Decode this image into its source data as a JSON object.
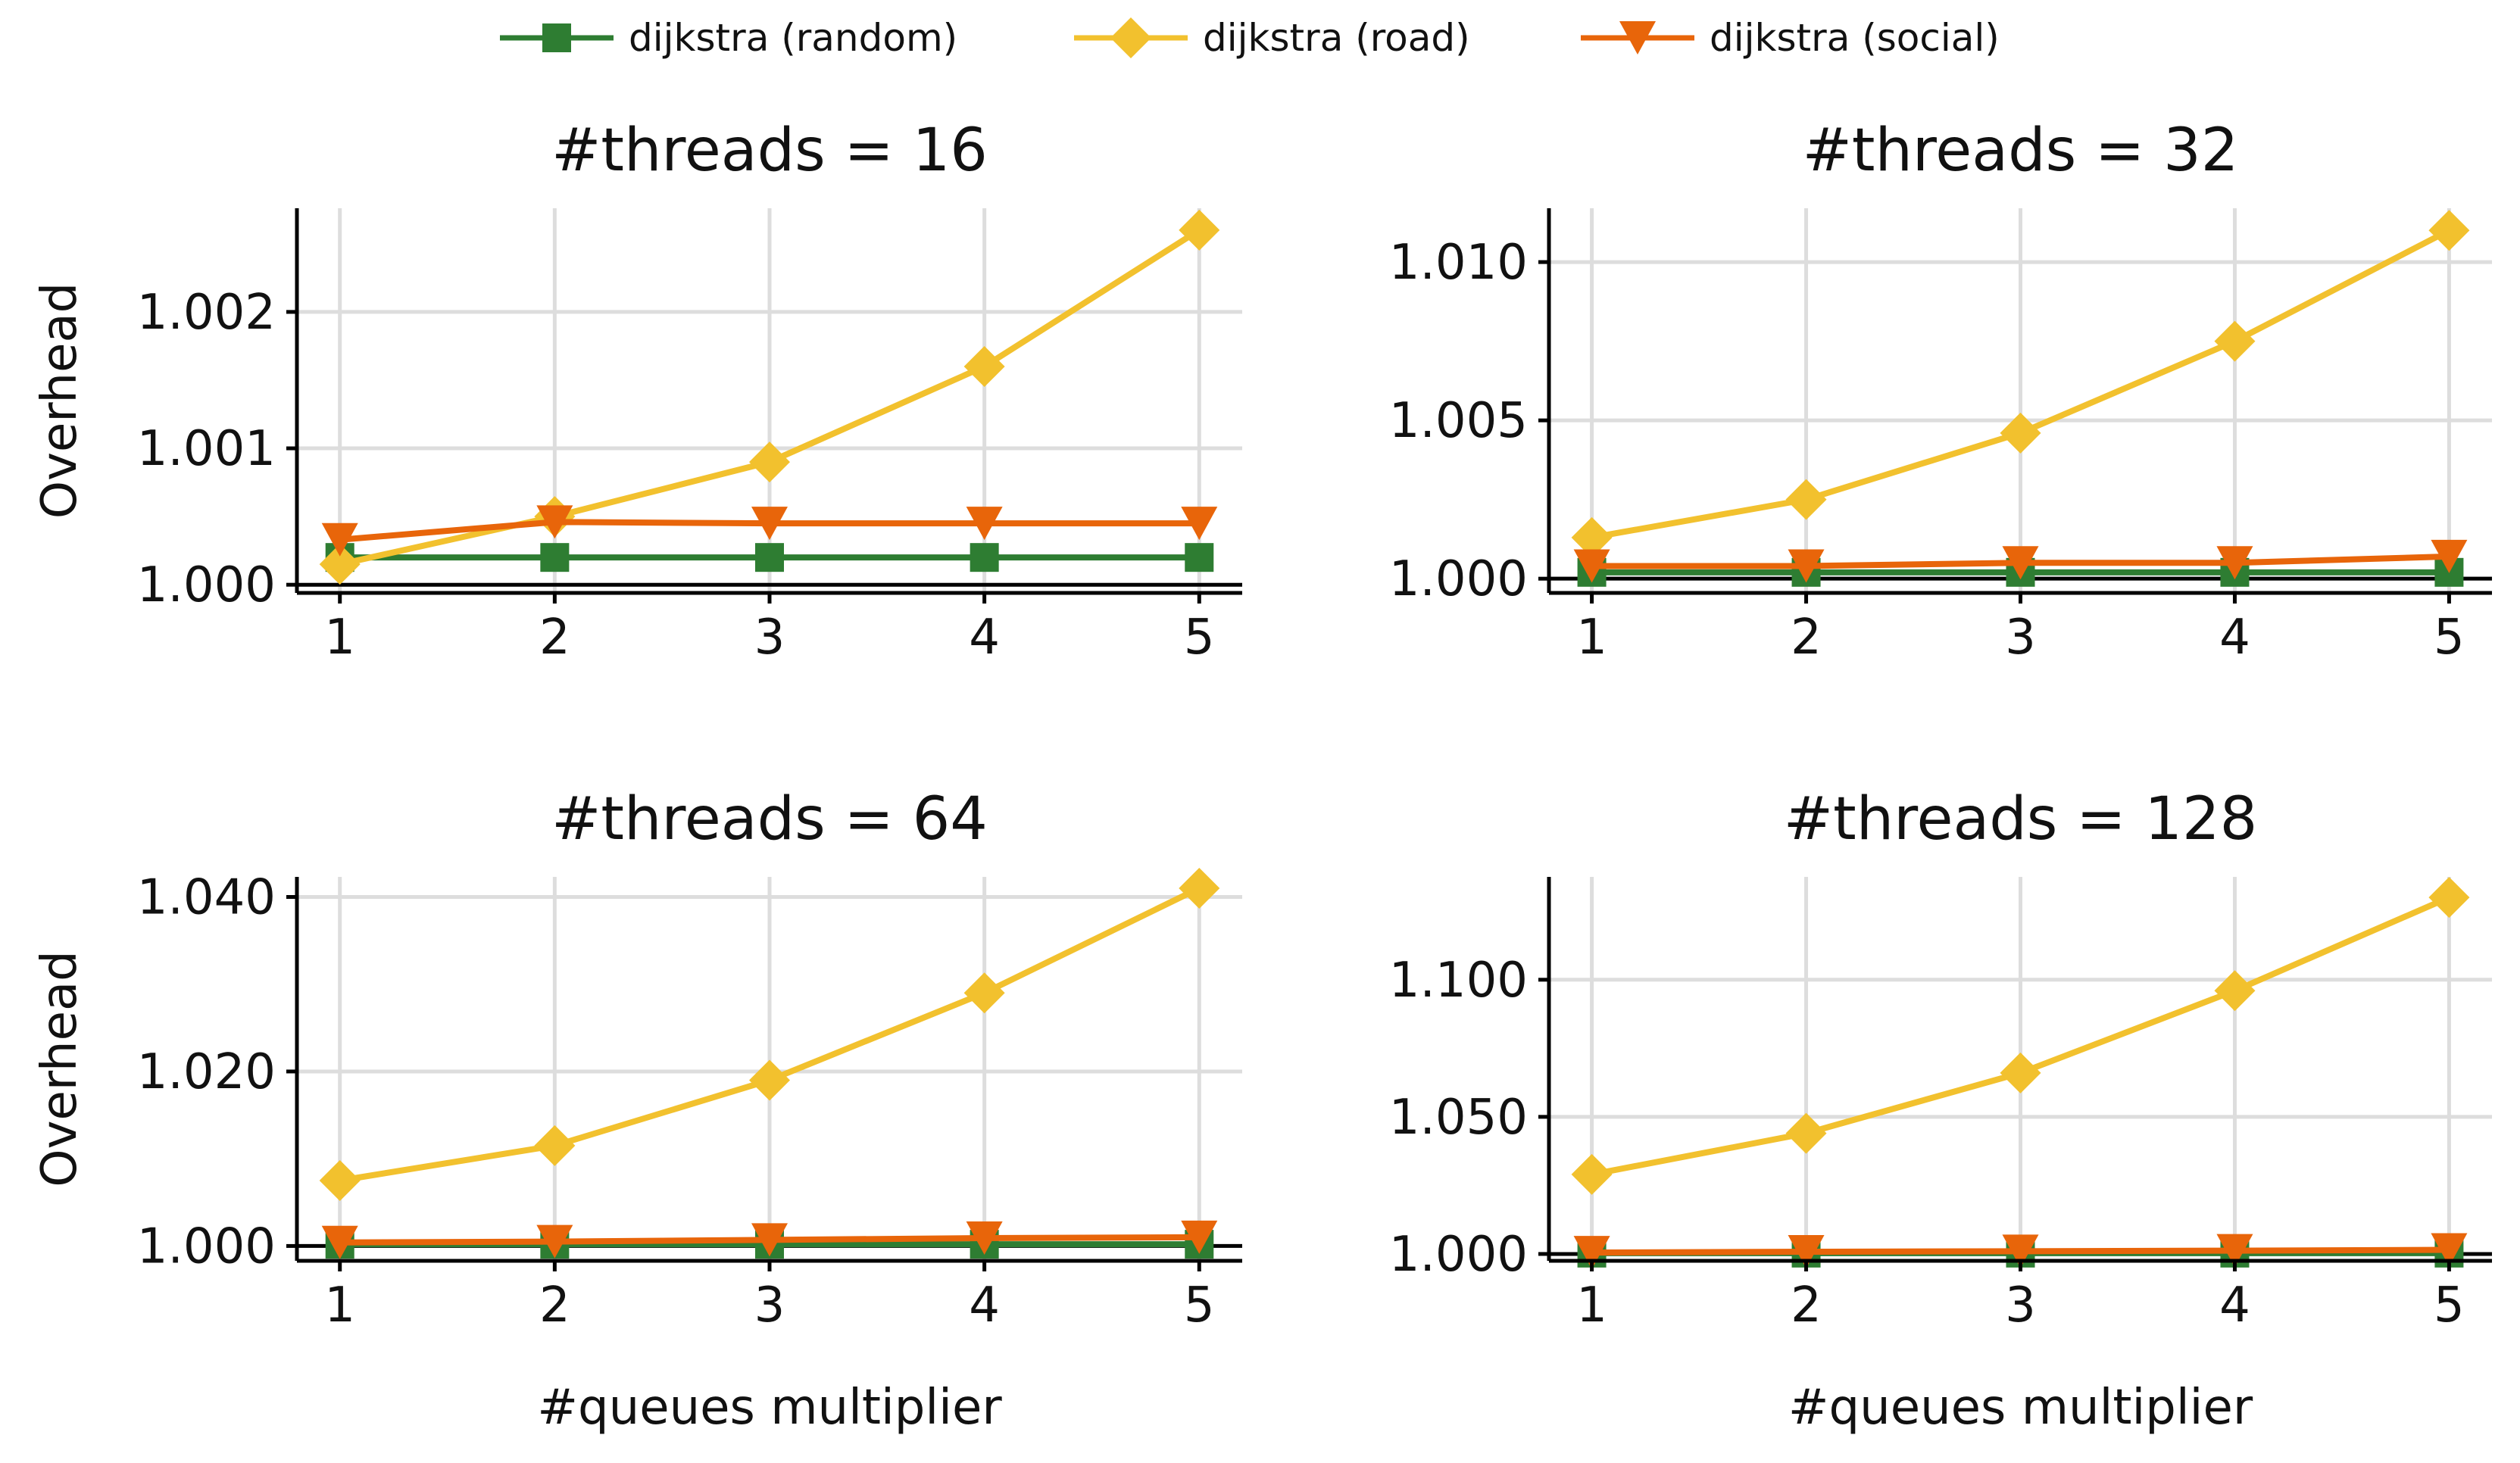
{
  "colors": {
    "random": "#2e7d32",
    "road": "#f2c12e",
    "social": "#e8650a",
    "grid": "#dddddd",
    "axis": "#000000",
    "text": "#111111"
  },
  "legend": {
    "placement": "top-center",
    "items": [
      {
        "label": "dijkstra (random)",
        "marker": "square",
        "color": "#2e7d32"
      },
      {
        "label": "dijkstra (road)",
        "marker": "diamond",
        "color": "#f2c12e"
      },
      {
        "label": "dijkstra (social)",
        "marker": "triangle-down",
        "color": "#e8650a"
      }
    ]
  },
  "chart_data": [
    {
      "type": "line",
      "title": "#threads = 16",
      "xlabel": "",
      "ylabel": "Overhead",
      "x": [
        1,
        2,
        3,
        4,
        5
      ],
      "x_tick_labels": [
        "1",
        "2",
        "3",
        "4",
        "5"
      ],
      "ylim": [
        0.99994,
        1.00276
      ],
      "y_ticks": [
        1.0,
        1.001,
        1.002
      ],
      "y_tick_labels": [
        "1.000",
        "1.001",
        "1.002"
      ],
      "grid": true,
      "series": [
        {
          "name": "dijkstra (random)",
          "values": [
            1.0002,
            1.0002,
            1.0002,
            1.0002,
            1.0002
          ]
        },
        {
          "name": "dijkstra (road)",
          "values": [
            1.00015,
            1.0005,
            1.0009,
            1.0016,
            1.0026
          ]
        },
        {
          "name": "dijkstra (social)",
          "values": [
            1.00033,
            1.00046,
            1.00045,
            1.00045,
            1.00045
          ]
        }
      ]
    },
    {
      "type": "line",
      "title": "#threads = 32",
      "xlabel": "",
      "ylabel": "",
      "x": [
        1,
        2,
        3,
        4,
        5
      ],
      "x_tick_labels": [
        "1",
        "2",
        "3",
        "4",
        "5"
      ],
      "ylim": [
        0.99955,
        1.0117
      ],
      "y_ticks": [
        1.0,
        1.005,
        1.01
      ],
      "y_tick_labels": [
        "1.000",
        "1.005",
        "1.010"
      ],
      "grid": true,
      "series": [
        {
          "name": "dijkstra (random)",
          "values": [
            1.0002,
            1.0002,
            1.0002,
            1.0002,
            1.0002
          ]
        },
        {
          "name": "dijkstra (road)",
          "values": [
            1.0013,
            1.0025,
            1.0046,
            1.0075,
            1.011
          ]
        },
        {
          "name": "dijkstra (social)",
          "values": [
            1.0004,
            1.0004,
            1.0005,
            1.0005,
            1.0007
          ]
        }
      ]
    },
    {
      "type": "line",
      "title": "#threads = 64",
      "xlabel": "#queues multiplier",
      "ylabel": "Overhead",
      "x": [
        1,
        2,
        3,
        4,
        5
      ],
      "x_tick_labels": [
        "1",
        "2",
        "3",
        "4",
        "5"
      ],
      "ylim": [
        0.9983,
        1.0423
      ],
      "y_ticks": [
        1.0,
        1.02,
        1.04
      ],
      "y_tick_labels": [
        "1.000",
        "1.020",
        "1.040"
      ],
      "grid": true,
      "series": [
        {
          "name": "dijkstra (random)",
          "values": [
            1.0002,
            1.0002,
            1.0002,
            1.0002,
            1.0002
          ]
        },
        {
          "name": "dijkstra (road)",
          "values": [
            1.0075,
            1.0115,
            1.019,
            1.029,
            1.041
          ]
        },
        {
          "name": "dijkstra (social)",
          "values": [
            1.0004,
            1.0005,
            1.0007,
            1.0009,
            1.001
          ]
        }
      ]
    },
    {
      "type": "line",
      "title": "#threads = 128",
      "xlabel": "#queues multiplier",
      "ylabel": "",
      "x": [
        1,
        2,
        3,
        4,
        5
      ],
      "x_tick_labels": [
        "1",
        "2",
        "3",
        "4",
        "5"
      ],
      "ylim": [
        0.9975,
        1.1375
      ],
      "y_ticks": [
        1.0,
        1.05,
        1.1
      ],
      "y_tick_labels": [
        "1.000",
        "1.050",
        "1.100"
      ],
      "grid": true,
      "series": [
        {
          "name": "dijkstra (random)",
          "values": [
            1.0003,
            1.0003,
            1.0003,
            1.0003,
            1.0003
          ]
        },
        {
          "name": "dijkstra (road)",
          "values": [
            1.029,
            1.044,
            1.066,
            1.096,
            1.13
          ]
        },
        {
          "name": "dijkstra (social)",
          "values": [
            1.0005,
            1.0008,
            1.001,
            1.0012,
            1.0015
          ]
        }
      ]
    }
  ]
}
